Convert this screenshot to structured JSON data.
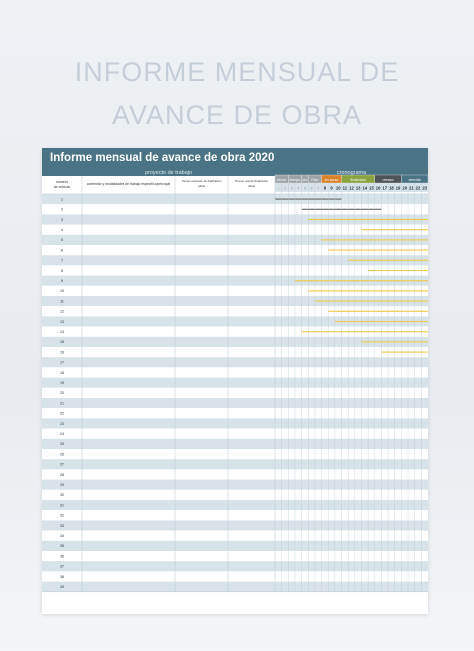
{
  "page": {
    "title_line1": "INFORME MENSUAL DE",
    "title_line2": "AVANCE DE OBRA"
  },
  "sheet": {
    "title": "Informe mensual de avance de obra 2020",
    "group_project": "proyecto de trabajo",
    "group_schedule": "cronograma",
    "col_number": "número de artículo",
    "col_content": "contenido y modalidades de trabajo específico/principal",
    "col_plan": "Tiempo estimado de finalización (días)",
    "col_actual": "Tiempo real de finalización (días)",
    "schedule_headers": [
      "fecha",
      "tiempo",
      "día",
      "Plan",
      "en curso",
      "finalizado",
      "retraso",
      "vencido"
    ],
    "day_numbers": [
      "1",
      "2",
      "3",
      "4",
      "5",
      "6",
      "7",
      "8",
      "9",
      "10",
      "11",
      "12",
      "13",
      "14",
      "15",
      "16",
      "17",
      "18",
      "19",
      "20",
      "21",
      "22",
      "23"
    ],
    "row_numbers": [
      "1",
      "2",
      "3",
      "4",
      "5",
      "6",
      "7",
      "8",
      "9",
      "10",
      "11",
      "12",
      "13",
      "14",
      "15",
      "16",
      "17",
      "18",
      "19",
      "20",
      "21",
      "22",
      "23",
      "24",
      "25",
      "26",
      "27",
      "28",
      "29",
      "30",
      "31",
      "32",
      "33",
      "34",
      "35",
      "36",
      "37",
      "38",
      "39"
    ],
    "colors": {
      "header_blue": "#4a7486",
      "subheader_blue": "#aec5d1",
      "band_blue": "#d8e3e9",
      "grid": "#b7c7d0",
      "legend_gray": "#9da3a6",
      "legend_orange": "#d9822b",
      "legend_green": "#8aa23f",
      "legend_dark": "#4f5357",
      "bar_dark": "#707070",
      "bar_yellow": "#f0cc55"
    },
    "gantt_bars": [
      {
        "row": 1,
        "start": 1,
        "end": 10,
        "color": "dark"
      },
      {
        "row": 2,
        "start": 5,
        "end": 16,
        "color": "dark"
      },
      {
        "row": 3,
        "start": 6,
        "end": 23,
        "color": "yellow"
      },
      {
        "row": 4,
        "start": 14,
        "end": 23,
        "color": "yellow"
      },
      {
        "row": 5,
        "start": 8,
        "end": 23,
        "color": "yellow"
      },
      {
        "row": 6,
        "start": 9,
        "end": 23,
        "color": "yellow"
      },
      {
        "row": 7,
        "start": 12,
        "end": 23,
        "color": "yellow"
      },
      {
        "row": 8,
        "start": 15,
        "end": 23,
        "color": "yellow"
      },
      {
        "row": 9,
        "start": 4,
        "end": 23,
        "color": "yellow"
      },
      {
        "row": 10,
        "start": 6,
        "end": 23,
        "color": "yellow"
      },
      {
        "row": 11,
        "start": 7,
        "end": 23,
        "color": "yellow"
      },
      {
        "row": 12,
        "start": 9,
        "end": 23,
        "color": "yellow"
      },
      {
        "row": 13,
        "start": 10,
        "end": 23,
        "color": "yellow"
      },
      {
        "row": 14,
        "start": 5,
        "end": 23,
        "color": "yellow"
      },
      {
        "row": 15,
        "start": 14,
        "end": 23,
        "color": "yellow"
      },
      {
        "row": 16,
        "start": 17,
        "end": 23,
        "color": "yellow"
      }
    ]
  }
}
